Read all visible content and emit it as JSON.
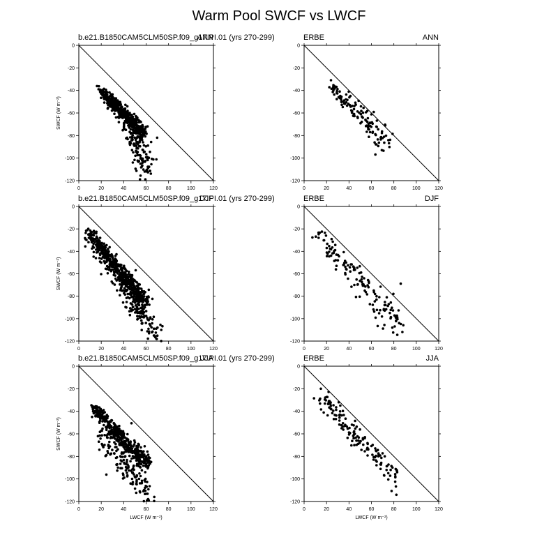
{
  "figure": {
    "title": "Warm Pool SWCF vs LWCF"
  },
  "axis_labels": {
    "x": "LWCF (W m⁻²)",
    "y": "SWCF (W m⁻²)"
  },
  "chart_data": [
    {
      "type": "scatter",
      "title_left": "b.e21.B1850CAM5CLM50SP.f09_g17.PI.01 (yrs 270-299)",
      "title_right": "ANN",
      "xlim": [
        0,
        120
      ],
      "ylim": [
        -120,
        0
      ],
      "ticks": [
        0,
        20,
        40,
        60,
        80,
        100,
        120
      ],
      "yticks": [
        -120,
        -100,
        -80,
        -60,
        -40,
        -20,
        0
      ],
      "reference_line": "y = -x",
      "xlabel": "",
      "ylabel": "SWCF (W m⁻²)",
      "seed": 11,
      "clusters": [
        {
          "n": 450,
          "x": [
            17,
            58
          ],
          "y": [
            -38,
            -78
          ],
          "s": [
            1.6,
            2.5
          ]
        },
        {
          "n": 90,
          "x": [
            26,
            60
          ],
          "y": [
            -50,
            -85
          ],
          "s": [
            2.5,
            5
          ]
        },
        {
          "n": 110,
          "x": [
            46,
            63
          ],
          "y": [
            -78,
            -118
          ],
          "s": [
            3,
            5
          ]
        }
      ]
    },
    {
      "type": "scatter",
      "title_left": "ERBE",
      "title_right": "ANN",
      "xlim": [
        0,
        120
      ],
      "ylim": [
        -120,
        0
      ],
      "ticks": [
        0,
        20,
        40,
        60,
        80,
        100,
        120
      ],
      "yticks": [
        -120,
        -100,
        -80,
        -60,
        -40,
        -20,
        0
      ],
      "reference_line": "y = -x",
      "xlabel": "",
      "ylabel": "",
      "seed": 22,
      "clusters": [
        {
          "n": 130,
          "x": [
            25,
            72
          ],
          "y": [
            -36,
            -86
          ],
          "s": [
            2.5,
            5
          ]
        }
      ]
    },
    {
      "type": "scatter",
      "title_left": "b.e21.B1850CAM5CLM50SP.f09_g17.PI.01 (yrs 270-299)",
      "title_right": "DJF",
      "xlim": [
        0,
        120
      ],
      "ylim": [
        -120,
        0
      ],
      "ticks": [
        0,
        20,
        40,
        60,
        80,
        100,
        120
      ],
      "yticks": [
        -120,
        -100,
        -80,
        -60,
        -40,
        -20,
        0
      ],
      "reference_line": "y = -x",
      "xlabel": "",
      "ylabel": "SWCF (W m⁻²)",
      "seed": 33,
      "clusters": [
        {
          "n": 420,
          "x": [
            8,
            60
          ],
          "y": [
            -22,
            -85
          ],
          "s": [
            1.4,
            3
          ]
        },
        {
          "n": 200,
          "x": [
            10,
            55
          ],
          "y": [
            -28,
            -90
          ],
          "s": [
            4,
            4
          ]
        },
        {
          "n": 90,
          "x": [
            45,
            72
          ],
          "y": [
            -85,
            -115
          ],
          "s": [
            3,
            4
          ]
        }
      ]
    },
    {
      "type": "scatter",
      "title_left": "ERBE",
      "title_right": "DJF",
      "xlim": [
        0,
        120
      ],
      "ylim": [
        -120,
        0
      ],
      "ticks": [
        0,
        20,
        40,
        60,
        80,
        100,
        120
      ],
      "yticks": [
        -120,
        -100,
        -80,
        -60,
        -40,
        -20,
        0
      ],
      "reference_line": "y = -x",
      "xlabel": "",
      "ylabel": "",
      "seed": 44,
      "clusters": [
        {
          "n": 130,
          "x": [
            12,
            82
          ],
          "y": [
            -25,
            -103
          ],
          "s": [
            3,
            7
          ]
        },
        {
          "n": 20,
          "x": [
            76,
            88
          ],
          "y": [
            -85,
            -112
          ],
          "s": [
            2,
            3
          ]
        }
      ]
    },
    {
      "type": "scatter",
      "title_left": "b.e21.B1850CAM5CLM50SP.f09_g17.PI.01 (yrs 270-299)",
      "title_right": "JJA",
      "xlim": [
        0,
        120
      ],
      "ylim": [
        -120,
        0
      ],
      "ticks": [
        0,
        20,
        40,
        60,
        80,
        100,
        120
      ],
      "yticks": [
        -120,
        -100,
        -80,
        -60,
        -40,
        -20,
        0
      ],
      "reference_line": "y = -x",
      "xlabel": "LWCF (W m⁻²)",
      "ylabel": "SWCF (W m⁻²)",
      "seed": 55,
      "clusters": [
        {
          "n": 400,
          "x": [
            12,
            62
          ],
          "y": [
            -36,
            -87
          ],
          "s": [
            1.8,
            3
          ]
        },
        {
          "n": 180,
          "x": [
            20,
            62
          ],
          "y": [
            -55,
            -115
          ],
          "s": [
            6,
            5
          ]
        }
      ]
    },
    {
      "type": "scatter",
      "title_left": "ERBE",
      "title_right": "JJA",
      "xlim": [
        0,
        120
      ],
      "ylim": [
        -120,
        0
      ],
      "ticks": [
        0,
        20,
        40,
        60,
        80,
        100,
        120
      ],
      "yticks": [
        -120,
        -100,
        -80,
        -60,
        -40,
        -20,
        0
      ],
      "reference_line": "y = -x",
      "xlabel": "LWCF (W m⁻²)",
      "ylabel": "",
      "seed": 66,
      "clusters": [
        {
          "n": 150,
          "x": [
            12,
            82
          ],
          "y": [
            -24,
            -100
          ],
          "s": [
            2.5,
            4
          ]
        }
      ]
    }
  ]
}
